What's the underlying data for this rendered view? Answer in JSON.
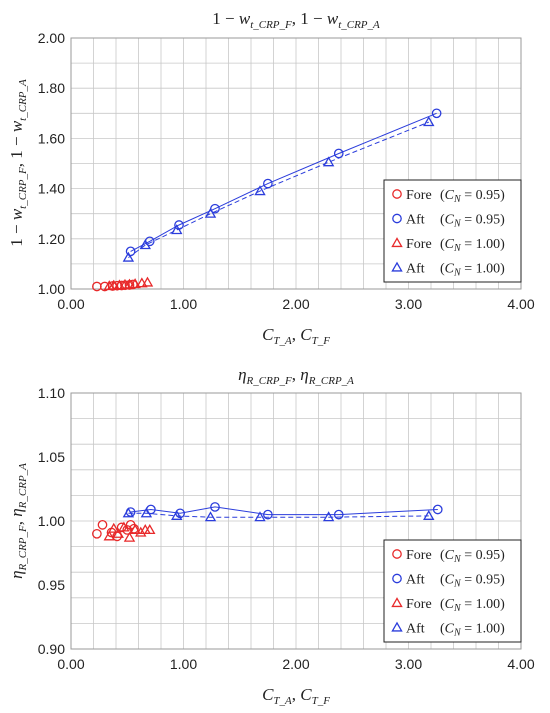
{
  "chart_data": [
    {
      "type": "scatter",
      "title": "1 − w_t_CRP_F, 1 − w_t_CRP_A",
      "xlabel": "C_T_A, C_T_F",
      "ylabel": "1 − w_t_CRP_F, 1 − w_t_CRP_A",
      "xlim": [
        0,
        4
      ],
      "ylim": [
        1.0,
        2.0
      ],
      "x_ticks": [
        "0.00",
        "1.00",
        "2.00",
        "3.00",
        "4.00"
      ],
      "y_ticks": [
        "1.00",
        "1.20",
        "1.40",
        "1.60",
        "1.80",
        "2.00"
      ],
      "grid": true,
      "legend_position": "right",
      "series": [
        {
          "name": "Fore (C_N = 0.95)",
          "marker": "circle",
          "color": "#e8292a",
          "line": "none",
          "x": [
            0.23,
            0.3,
            0.37,
            0.41,
            0.45,
            0.48,
            0.52,
            0.55
          ],
          "y": [
            1.01,
            1.01,
            1.012,
            1.013,
            1.014,
            1.015,
            1.016,
            1.018
          ]
        },
        {
          "name": "Aft (C_N = 0.95)",
          "marker": "circle",
          "color": "#2b3ddc",
          "line": "solid",
          "x": [
            0.53,
            0.7,
            0.96,
            1.28,
            1.75,
            2.38,
            3.25
          ],
          "y": [
            1.15,
            1.19,
            1.255,
            1.32,
            1.42,
            1.54,
            1.7
          ]
        },
        {
          "name": "Fore (C_N = 1.00)",
          "marker": "triangle",
          "color": "#e8292a",
          "line": "none",
          "x": [
            0.34,
            0.38,
            0.43,
            0.48,
            0.52,
            0.57,
            0.63,
            0.68
          ],
          "y": [
            1.012,
            1.014,
            1.015,
            1.017,
            1.018,
            1.02,
            1.023,
            1.026
          ]
        },
        {
          "name": "Aft (C_N = 1.00)",
          "marker": "triangle",
          "color": "#2b3ddc",
          "line": "dashed",
          "x": [
            0.51,
            0.66,
            0.94,
            1.24,
            1.68,
            2.29,
            3.18
          ],
          "y": [
            1.125,
            1.175,
            1.235,
            1.3,
            1.39,
            1.505,
            1.665
          ]
        }
      ]
    },
    {
      "type": "scatter",
      "title": "η_R_CRP_F, η_R_CRP_A",
      "xlabel": "C_T_A, C_T_F",
      "ylabel": "η_R_CRP_F, η_R_CRP_A",
      "xlim": [
        0,
        4
      ],
      "ylim": [
        0.9,
        1.1
      ],
      "x_ticks": [
        "0.00",
        "1.00",
        "2.00",
        "3.00",
        "4.00"
      ],
      "y_ticks": [
        "0.90",
        "0.95",
        "1.00",
        "1.05",
        "1.10"
      ],
      "grid": true,
      "legend_position": "bottom-right",
      "series": [
        {
          "name": "Fore (C_N = 0.95)",
          "marker": "circle",
          "color": "#e8292a",
          "line": "none",
          "x": [
            0.23,
            0.28,
            0.36,
            0.41,
            0.45,
            0.5,
            0.53,
            0.56
          ],
          "y": [
            0.99,
            0.997,
            0.991,
            0.988,
            0.995,
            0.993,
            0.997,
            0.994
          ]
        },
        {
          "name": "Aft (C_N = 0.95)",
          "marker": "circle",
          "color": "#2b3ddc",
          "line": "solid",
          "x": [
            0.53,
            0.71,
            0.97,
            1.28,
            1.75,
            2.38,
            3.26
          ],
          "y": [
            1.007,
            1.009,
            1.006,
            1.011,
            1.005,
            1.005,
            1.009
          ]
        },
        {
          "name": "Fore (C_N = 1.00)",
          "marker": "triangle",
          "color": "#e8292a",
          "line": "none",
          "x": [
            0.34,
            0.38,
            0.42,
            0.47,
            0.52,
            0.57,
            0.62,
            0.66,
            0.7
          ],
          "y": [
            0.988,
            0.994,
            0.99,
            0.995,
            0.987,
            0.993,
            0.991,
            0.993,
            0.993
          ]
        },
        {
          "name": "Aft (C_N = 1.00)",
          "marker": "triangle",
          "color": "#2b3ddc",
          "line": "dashed",
          "x": [
            0.51,
            0.67,
            0.94,
            1.24,
            1.68,
            2.29,
            3.18
          ],
          "y": [
            1.006,
            1.006,
            1.004,
            1.003,
            1.003,
            1.003,
            1.004
          ]
        }
      ]
    }
  ]
}
